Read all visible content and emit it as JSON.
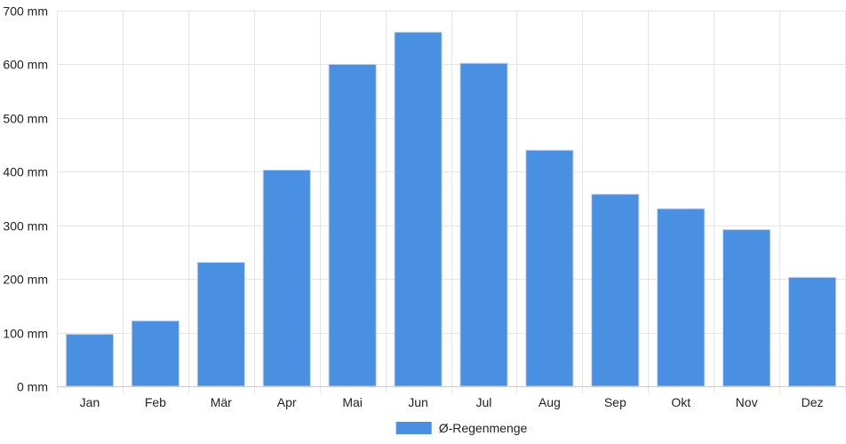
{
  "chart_data": {
    "type": "bar",
    "categories": [
      "Jan",
      "Feb",
      "Mär",
      "Apr",
      "Mai",
      "Jun",
      "Jul",
      "Aug",
      "Sep",
      "Okt",
      "Nov",
      "Dez"
    ],
    "series": [
      {
        "name": "Ø-Regenmenge",
        "values": [
          97,
          122,
          231,
          403,
          600,
          660,
          602,
          440,
          358,
          331,
          292,
          203
        ],
        "color": "#4a90e2"
      }
    ],
    "title": "",
    "xlabel": "",
    "ylabel": "",
    "ylim": [
      0,
      700
    ],
    "yticks": [
      0,
      100,
      200,
      300,
      400,
      500,
      600,
      700
    ],
    "y_tick_labels": [
      "0 mm",
      "100 mm",
      "200 mm",
      "300 mm",
      "400 mm",
      "500 mm",
      "600 mm",
      "700 mm"
    ],
    "grid": true,
    "legend": "bottom-center"
  },
  "colors": {
    "grid": "#e5e5e5",
    "axis": "#cccccc",
    "text": "#222222",
    "bar_border": "#d0d7df"
  }
}
